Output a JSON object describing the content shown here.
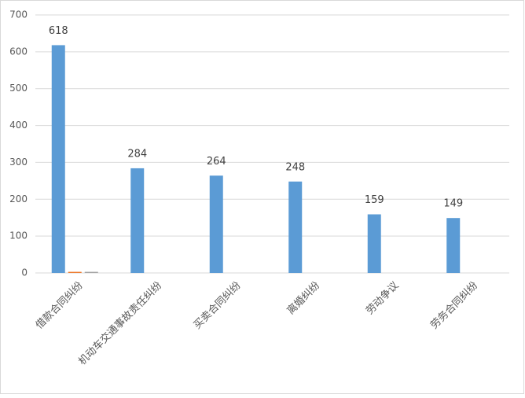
{
  "chart_data": {
    "type": "bar",
    "categories": [
      "借款合同纠纷",
      "机动车交通事故责任纠纷",
      "买卖合同纠纷",
      "离婚纠纷",
      "劳动争议",
      "劳务合同纠纷"
    ],
    "series": [
      {
        "color": "#5b9bd5",
        "values": [
          618,
          284,
          264,
          248,
          159,
          149
        ]
      },
      {
        "color": "#ed7d31",
        "values": [
          3,
          0,
          0,
          0,
          0,
          0
        ]
      },
      {
        "color": "#a5a5a5",
        "values": [
          3,
          0,
          0,
          0,
          0,
          0
        ]
      }
    ],
    "ylim": [
      0,
      700
    ],
    "yticks": [
      0,
      100,
      200,
      300,
      400,
      500,
      600,
      700
    ],
    "grid": true
  }
}
